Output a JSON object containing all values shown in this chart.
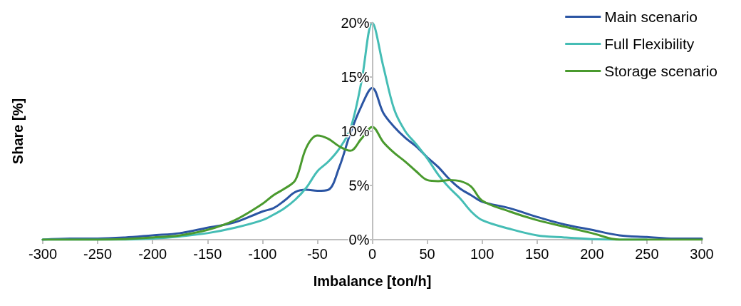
{
  "chart_data": {
    "type": "line",
    "xlabel": "Imbalance [ton/h]",
    "ylabel": "Share [%]",
    "xlim": [
      -300,
      300
    ],
    "xticks": [
      -300,
      -250,
      -200,
      -150,
      -100,
      -50,
      0,
      50,
      100,
      150,
      200,
      250,
      300
    ],
    "ylim": [
      0,
      20
    ],
    "yticks": [
      {
        "value": 0,
        "label": "0%"
      },
      {
        "value": 5,
        "label": "5%"
      },
      {
        "value": 10,
        "label": "10%"
      },
      {
        "value": 15,
        "label": "15%"
      },
      {
        "value": 20,
        "label": "20%"
      }
    ],
    "grid": false,
    "legend": "top right",
    "marker": "none",
    "x": [
      -300,
      -275,
      -250,
      -225,
      -200,
      -175,
      -150,
      -125,
      -100,
      -90,
      -80,
      -70,
      -60,
      -50,
      -40,
      -30,
      -20,
      -10,
      0,
      10,
      20,
      30,
      40,
      50,
      60,
      70,
      80,
      90,
      100,
      125,
      150,
      175,
      200,
      225,
      250,
      275,
      300
    ],
    "series": [
      {
        "name": "Main scenario",
        "color": "#2b55a3",
        "values": [
          0,
          0.1,
          0.1,
          0.2,
          0.4,
          0.6,
          1.1,
          1.6,
          2.6,
          2.9,
          3.6,
          4.4,
          4.6,
          4.5,
          4.6,
          6.7,
          9.8,
          12.3,
          14,
          11.7,
          10.4,
          9.4,
          8.6,
          7.6,
          6.7,
          5.6,
          4.7,
          4.1,
          3.5,
          2.9,
          2.1,
          1.4,
          0.9,
          0.4,
          0.25,
          0.1,
          0.1
        ]
      },
      {
        "name": "Full Flexibility",
        "color": "#45bdb5",
        "values": [
          0,
          0,
          0,
          0,
          0.1,
          0.3,
          0.6,
          1.1,
          1.8,
          2.3,
          2.9,
          3.7,
          4.8,
          6.3,
          7.2,
          8.4,
          10.2,
          14.5,
          20,
          16,
          12,
          10,
          8.8,
          7.5,
          6,
          4.8,
          3.8,
          2.6,
          1.8,
          1,
          0.4,
          0.2,
          0.05,
          0,
          0,
          null,
          null
        ]
      },
      {
        "name": "Storage scenario",
        "color": "#4a9a2e",
        "values": [
          0,
          0,
          0,
          0.05,
          0.2,
          0.4,
          0.9,
          1.8,
          3.3,
          4.1,
          4.7,
          5.5,
          8.5,
          9.6,
          9.3,
          8.6,
          8.2,
          9.3,
          10.4,
          9,
          8,
          7.2,
          6.3,
          5.5,
          5.4,
          5.5,
          5.4,
          4.9,
          3.6,
          2.6,
          1.8,
          1.2,
          0.6,
          0,
          0,
          0,
          0
        ]
      }
    ]
  }
}
